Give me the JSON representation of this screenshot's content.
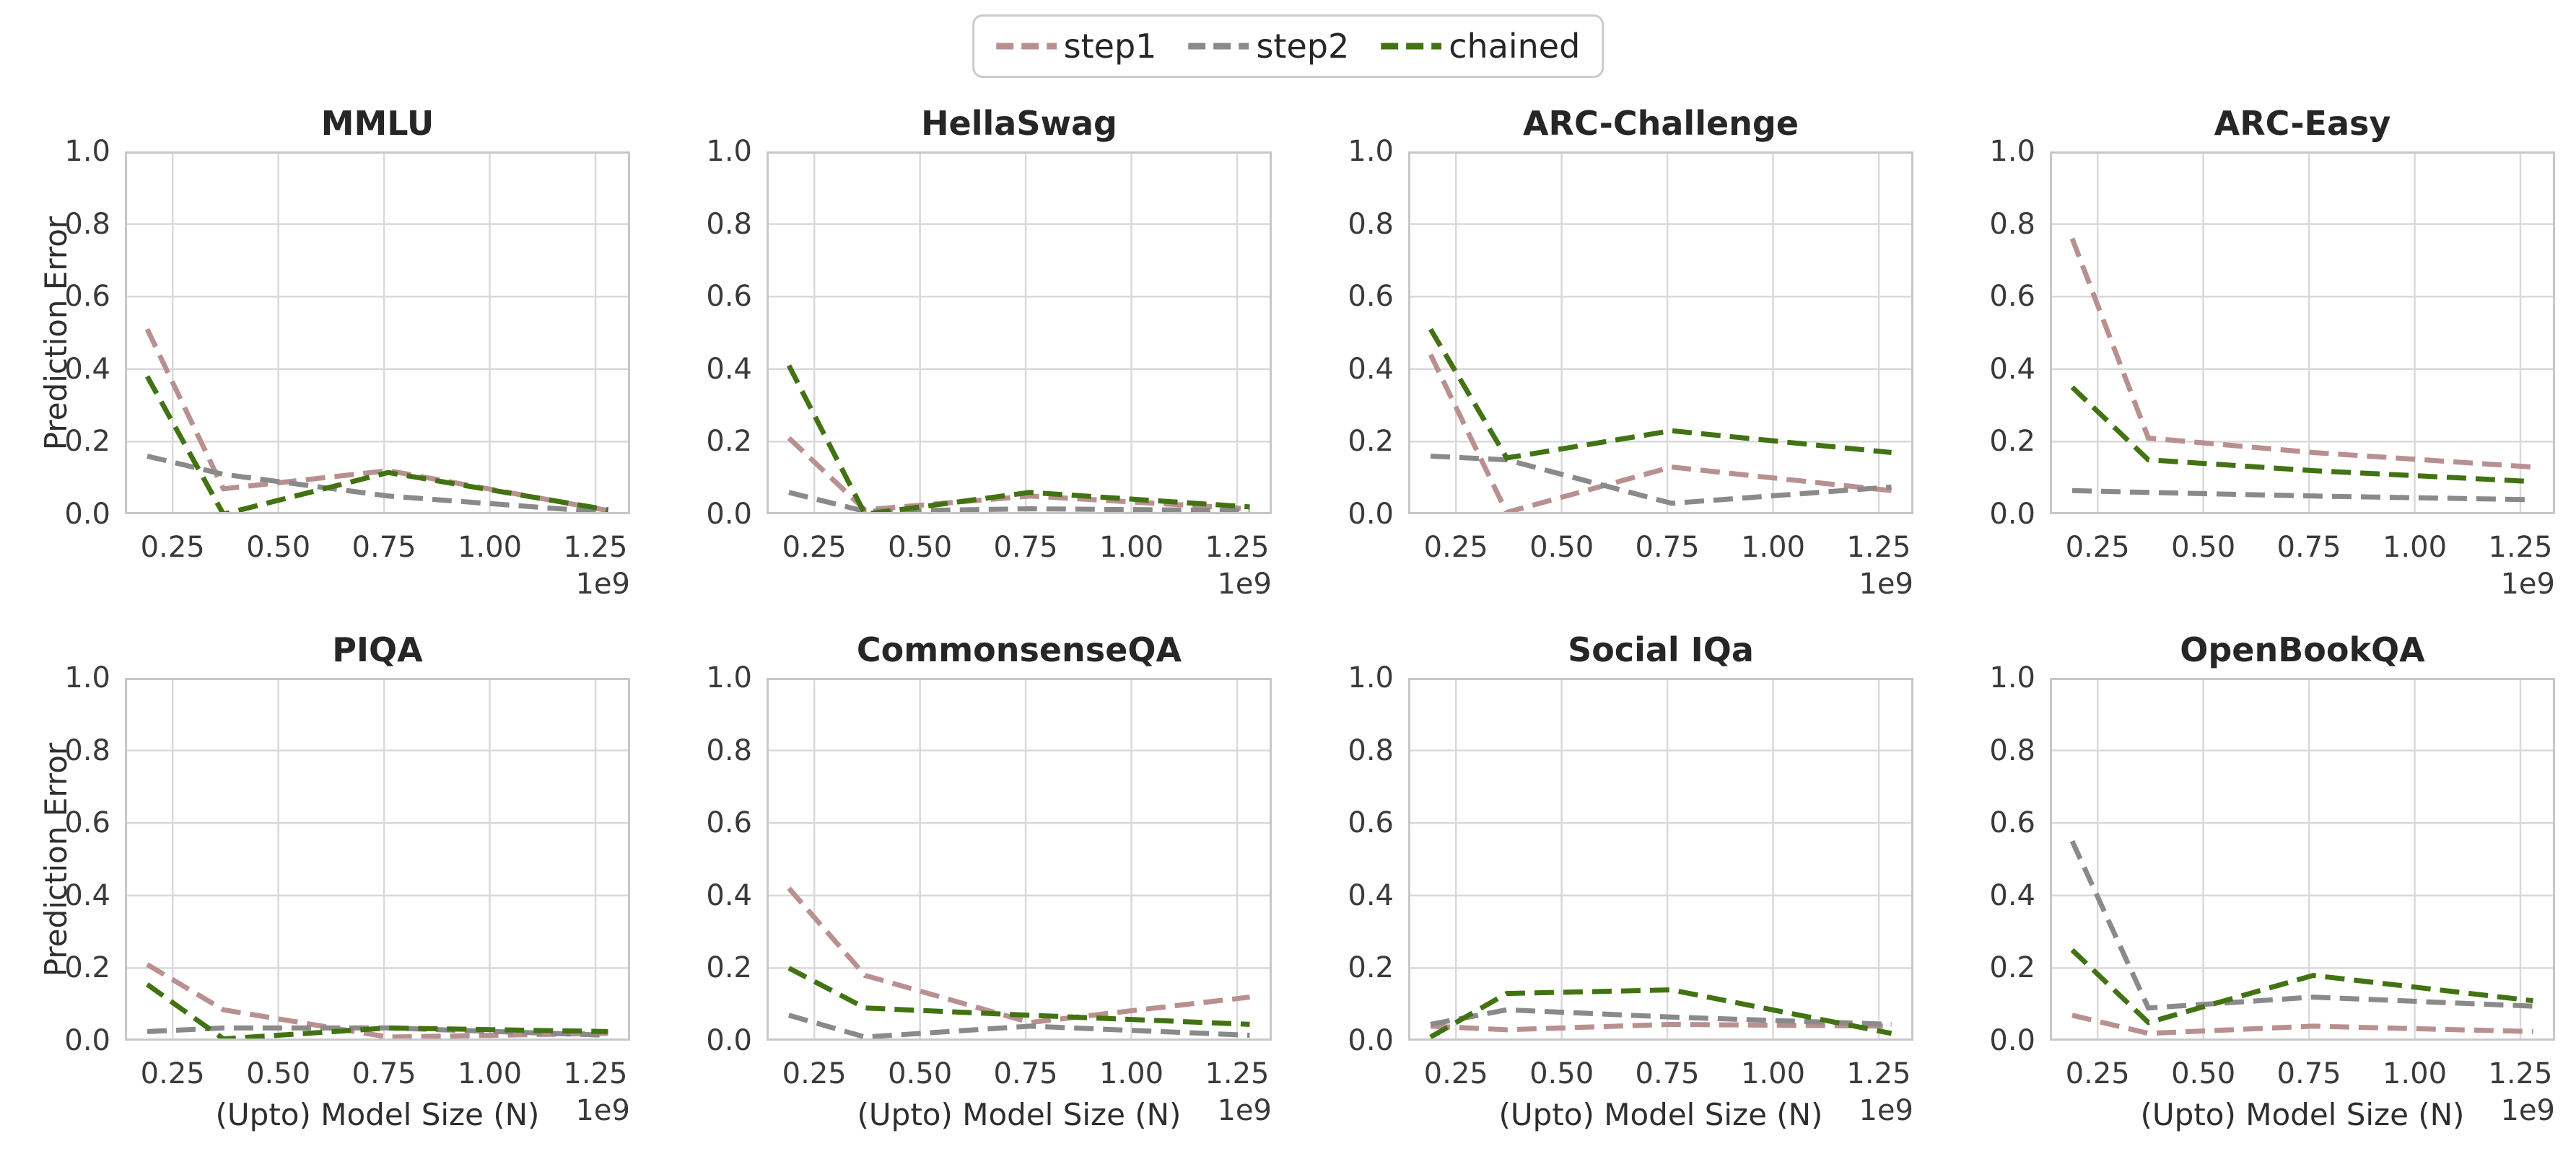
{
  "figure": {
    "ylabel": "Prediction Error",
    "xlabel": "(Upto) Model Size (N)",
    "axis_offset_label": "1e9",
    "x_tick_labels": [
      "0.25",
      "0.50",
      "0.75",
      "1.00",
      "1.25"
    ],
    "x_tick_values": [
      0.25,
      0.5,
      0.75,
      1.0,
      1.25
    ],
    "y_tick_labels": [
      "0.0",
      "0.2",
      "0.4",
      "0.6",
      "0.8",
      "1.0"
    ],
    "y_tick_values": [
      0.0,
      0.2,
      0.4,
      0.6,
      0.8,
      1.0
    ],
    "grid": true,
    "legend_position": "top-center",
    "colors": {
      "step1": "#b99090",
      "step2": "#8a8a8a",
      "chained": "#427313",
      "grid": "#d9d9d9",
      "spine": "#c7c7c7",
      "title_text": "#262626",
      "tick_text": "#3a3a3a"
    }
  },
  "legend": {
    "items": [
      {
        "label": "step1",
        "color": "#b99090"
      },
      {
        "label": "step2",
        "color": "#8a8a8a"
      },
      {
        "label": "chained",
        "color": "#427313"
      }
    ]
  },
  "chart_data": {
    "type": "line",
    "line_style": "dashed",
    "x": [
      0.19,
      0.37,
      0.76,
      1.28
    ],
    "x_unit": "1e9 (billions of parameters)",
    "xlim": [
      0.137,
      1.332
    ],
    "ylim": [
      0.0,
      1.0
    ],
    "xlabel": "(Upto) Model Size (N)",
    "ylabel": "Prediction Error",
    "legend_entries": [
      "step1",
      "step2",
      "chained"
    ],
    "charts": [
      {
        "title": "MMLU",
        "series": [
          {
            "name": "step1",
            "values": [
              0.51,
              0.07,
              0.12,
              0.01
            ]
          },
          {
            "name": "step2",
            "values": [
              0.16,
              0.11,
              0.05,
              0.005
            ]
          },
          {
            "name": "chained",
            "values": [
              0.38,
              0.0,
              0.115,
              0.012
            ]
          }
        ]
      },
      {
        "title": "HellaSwag",
        "series": [
          {
            "name": "step1",
            "values": [
              0.21,
              0.012,
              0.05,
              0.015
            ]
          },
          {
            "name": "step2",
            "values": [
              0.06,
              0.008,
              0.015,
              0.01
            ]
          },
          {
            "name": "chained",
            "values": [
              0.41,
              0.0,
              0.06,
              0.02
            ]
          }
        ]
      },
      {
        "title": "ARC-Challenge",
        "series": [
          {
            "name": "step1",
            "values": [
              0.44,
              0.005,
              0.13,
              0.065
            ]
          },
          {
            "name": "step2",
            "values": [
              0.16,
              0.15,
              0.03,
              0.075
            ]
          },
          {
            "name": "chained",
            "values": [
              0.51,
              0.155,
              0.23,
              0.17
            ]
          }
        ]
      },
      {
        "title": "ARC-Easy",
        "series": [
          {
            "name": "step1",
            "values": [
              0.76,
              0.21,
              0.17,
              0.13
            ]
          },
          {
            "name": "step2",
            "values": [
              0.065,
              0.06,
              0.05,
              0.04
            ]
          },
          {
            "name": "chained",
            "values": [
              0.35,
              0.15,
              0.12,
              0.09
            ]
          }
        ]
      },
      {
        "title": "PIQA",
        "series": [
          {
            "name": "step1",
            "values": [
              0.21,
              0.085,
              0.01,
              0.02
            ]
          },
          {
            "name": "step2",
            "values": [
              0.025,
              0.035,
              0.035,
              0.015
            ]
          },
          {
            "name": "chained",
            "values": [
              0.155,
              0.005,
              0.035,
              0.025
            ]
          }
        ]
      },
      {
        "title": "CommonsenseQA",
        "series": [
          {
            "name": "step1",
            "values": [
              0.42,
              0.18,
              0.05,
              0.12
            ]
          },
          {
            "name": "step2",
            "values": [
              0.07,
              0.01,
              0.04,
              0.015
            ]
          },
          {
            "name": "chained",
            "values": [
              0.2,
              0.09,
              0.07,
              0.045
            ]
          }
        ]
      },
      {
        "title": "Social IQa",
        "series": [
          {
            "name": "step1",
            "values": [
              0.04,
              0.03,
              0.045,
              0.04
            ]
          },
          {
            "name": "step2",
            "values": [
              0.045,
              0.085,
              0.065,
              0.045
            ]
          },
          {
            "name": "chained",
            "values": [
              0.01,
              0.13,
              0.14,
              0.02
            ]
          }
        ]
      },
      {
        "title": "OpenBookQA",
        "series": [
          {
            "name": "step1",
            "values": [
              0.07,
              0.02,
              0.04,
              0.025
            ]
          },
          {
            "name": "step2",
            "values": [
              0.55,
              0.09,
              0.12,
              0.095
            ]
          },
          {
            "name": "chained",
            "values": [
              0.25,
              0.05,
              0.18,
              0.11
            ]
          }
        ]
      }
    ]
  }
}
